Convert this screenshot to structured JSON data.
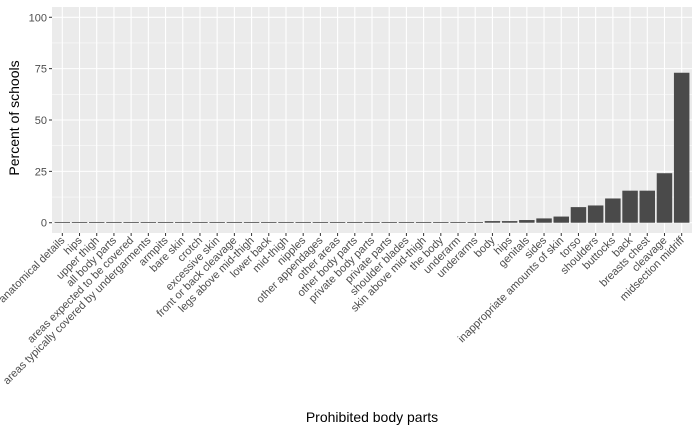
{
  "chart_data": {
    "type": "bar",
    "xlabel": "Prohibited body parts",
    "ylabel": "Percent of schools",
    "ylim": [
      0,
      100
    ],
    "yticks": [
      0,
      25,
      50,
      75,
      100
    ],
    "grid": true,
    "legend": "none",
    "colors": {
      "panel": "#ebebeb",
      "grid": "#ffffff",
      "bar": "#4a4a4a",
      "tick_text": "#4d4d4d",
      "title_text": "#000000"
    },
    "categories": [
      "anatomical details",
      "hips",
      "upper thigh",
      "all body parts",
      "areas expected to be covered",
      "areas typically covered by undergarments",
      "armpits",
      "bare skin",
      "crotch",
      "excessive skin",
      "front or back cleavage",
      "legs above mid-thigh",
      "lower back",
      "mid-thigh",
      "nipples",
      "other appendages",
      "other areas",
      "other body parts",
      "private body parts",
      "private parts",
      "shoulder blades",
      "skin above mid-thigh",
      "the body",
      "underarm",
      "underarms",
      "body",
      "hips",
      "genitals",
      "sides",
      "inappropriate amounts of skin",
      "torso",
      "shoulders",
      "buttocks",
      "back",
      "breasts chest",
      "cleavage",
      "midsection midriff"
    ],
    "values": [
      0.3,
      0.3,
      0.3,
      0.3,
      0.3,
      0.3,
      0.3,
      0.3,
      0.3,
      0.3,
      0.3,
      0.3,
      0.3,
      0.3,
      0.3,
      0.3,
      0.3,
      0.3,
      0.3,
      0.3,
      0.3,
      0.3,
      0.3,
      0.3,
      0.3,
      0.8,
      0.8,
      1.3,
      2.1,
      3.0,
      7.6,
      8.4,
      11.8,
      15.6,
      15.6,
      24.1,
      73.0
    ]
  }
}
